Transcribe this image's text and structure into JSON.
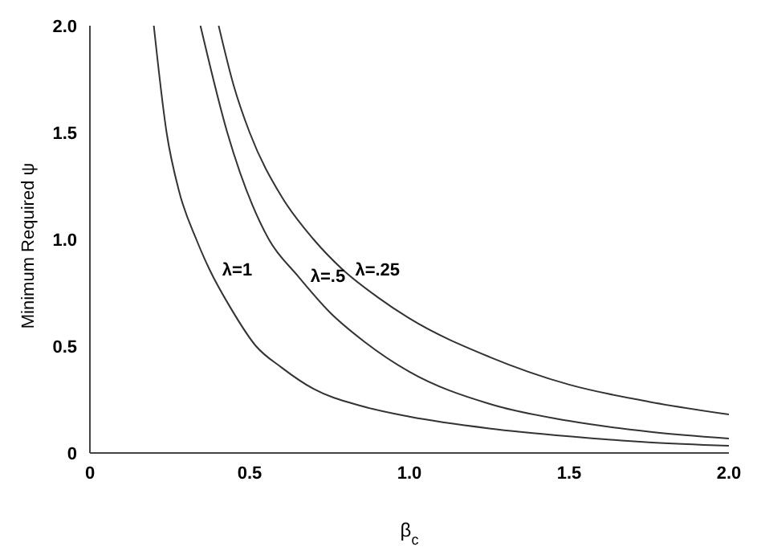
{
  "chart_data": {
    "type": "line",
    "xlabel": "β$_{c}$",
    "ylabel": "Minimum Required ψ",
    "xlim": [
      0,
      2
    ],
    "ylim": [
      0,
      2
    ],
    "xticks": [
      0,
      0.5,
      {
        "value": 1,
        "label": "1.0"
      },
      1.5,
      {
        "value": 2,
        "label": "2.0"
      }
    ],
    "yticks": [
      0,
      0.5,
      {
        "value": 1,
        "label": "1.0"
      },
      1.5,
      {
        "value": 2,
        "label": "2.0"
      }
    ],
    "grid": false,
    "marker": "none",
    "line_style": "solid",
    "legend": false,
    "series": [
      {
        "name": "λ=1",
        "color": "#333333",
        "x": [
          0.2,
          0.24,
          0.28,
          0.333,
          0.374,
          0.44,
          0.52,
          0.6,
          0.7,
          0.85,
          1.0,
          1.25,
          1.5,
          1.75,
          2.0
        ],
        "values": [
          2.0,
          1.5,
          1.22,
          1.0,
          0.86,
          0.68,
          0.5,
          0.4,
          0.3,
          0.22,
          0.17,
          0.115,
          0.078,
          0.05,
          0.034
        ]
      },
      {
        "name": "λ=.5",
        "color": "#333333",
        "x": [
          0.346,
          0.43,
          0.56,
          0.65,
          0.75,
          0.86,
          1.0,
          1.25,
          1.5,
          1.75,
          2.0
        ],
        "values": [
          2.0,
          1.5,
          1.0,
          0.83,
          0.66,
          0.52,
          0.38,
          0.23,
          0.15,
          0.1,
          0.068
        ]
      },
      {
        "name": "λ=.25",
        "color": "#333333",
        "x": [
          0.403,
          0.45,
          0.5,
          0.6,
          0.7,
          0.79,
          0.9,
          1.0,
          1.25,
          1.5,
          1.75,
          2.0
        ],
        "values": [
          2.0,
          1.72,
          1.5,
          1.2,
          1.0,
          0.86,
          0.73,
          0.63,
          0.45,
          0.32,
          0.24,
          0.18
        ]
      }
    ]
  }
}
